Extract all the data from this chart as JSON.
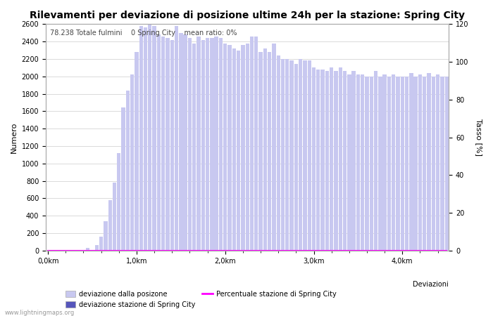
{
  "title": "Rilevamenti per deviazione di posizione ultime 24h per la stazione: Spring City",
  "xlabel": "Deviazioni",
  "ylabel_left": "Numero",
  "ylabel_right": "Tasso [%]",
  "annotation": "78.238 Totale fulmini    0 Spring City    mean ratio: 0%",
  "watermark": "www.lightningmaps.org",
  "bar_color_light": "#c8c8f0",
  "bar_color_dark": "#5555bb",
  "line_color": "#ff00ff",
  "background_color": "#ffffff",
  "grid_color": "#cccccc",
  "ylim_left": [
    0,
    2600
  ],
  "ylim_right": [
    0,
    120
  ],
  "xtick_labels": [
    "0,0km",
    "1,0km",
    "2,0km",
    "3,0km",
    "4,0km"
  ],
  "xtick_positions": [
    0,
    20,
    40,
    60,
    80
  ],
  "legend_labels": [
    "deviazione dalla posizone",
    "deviazione stazione di Spring City",
    "Percentuale stazione di Spring City"
  ],
  "bar_values": [
    0,
    0,
    0,
    0,
    0,
    0,
    0,
    0,
    0,
    30,
    0,
    60,
    160,
    340,
    580,
    780,
    1120,
    1640,
    1840,
    2020,
    2280,
    2580,
    2560,
    2600,
    2580,
    2480,
    2460,
    2440,
    2420,
    2580,
    2500,
    2480,
    2440,
    2380,
    2460,
    2420,
    2440,
    2440,
    2460,
    2440,
    2380,
    2360,
    2320,
    2300,
    2360,
    2380,
    2460,
    2460,
    2280,
    2320,
    2280,
    2380,
    2240,
    2200,
    2200,
    2180,
    2140,
    2200,
    2180,
    2180,
    2100,
    2080,
    2080,
    2060,
    2100,
    2060,
    2100,
    2060,
    2020,
    2060,
    2020,
    2020,
    2000,
    2000,
    2060,
    2000,
    2020,
    2000,
    2020,
    2000,
    2000,
    2000,
    2040,
    2000,
    2020,
    2000,
    2040,
    2000,
    2020,
    2000,
    2000
  ],
  "station_values": [
    0,
    0,
    0,
    0,
    0,
    0,
    0,
    0,
    0,
    0,
    0,
    0,
    0,
    0,
    0,
    0,
    0,
    0,
    0,
    0,
    0,
    0,
    0,
    0,
    0,
    0,
    0,
    0,
    0,
    0,
    0,
    0,
    0,
    0,
    0,
    0,
    0,
    0,
    0,
    0,
    0,
    0,
    0,
    0,
    0,
    0,
    0,
    0,
    0,
    0,
    0,
    0,
    0,
    0,
    0,
    0,
    0,
    0,
    0,
    0,
    0,
    0,
    0,
    0,
    0,
    0,
    0,
    0,
    0,
    0,
    0,
    0,
    0,
    0,
    0,
    0,
    0,
    0,
    0,
    0,
    0,
    0,
    0,
    0,
    0,
    0,
    0,
    0,
    0,
    0,
    0
  ],
  "percentage_values": [
    0,
    0,
    0,
    0,
    0,
    0,
    0,
    0,
    0,
    0,
    0,
    0,
    0,
    0,
    0,
    0,
    0,
    0,
    0,
    0,
    0,
    0,
    0,
    0,
    0,
    0,
    0,
    0,
    0,
    0,
    0,
    0,
    0,
    0,
    0,
    0,
    0,
    0,
    0,
    0,
    0,
    0,
    0,
    0,
    0,
    0,
    0,
    0,
    0,
    0,
    0,
    0,
    0,
    0,
    0,
    0,
    0,
    0,
    0,
    0,
    0,
    0,
    0,
    0,
    0,
    0,
    0,
    0,
    0,
    0,
    0,
    0,
    0,
    0,
    0,
    0,
    0,
    0,
    0,
    0,
    0,
    0,
    0,
    0,
    0,
    0,
    0,
    0,
    0,
    0,
    0
  ],
  "title_fontsize": 10,
  "label_fontsize": 8,
  "tick_fontsize": 7,
  "legend_fontsize": 7,
  "annotation_fontsize": 7
}
